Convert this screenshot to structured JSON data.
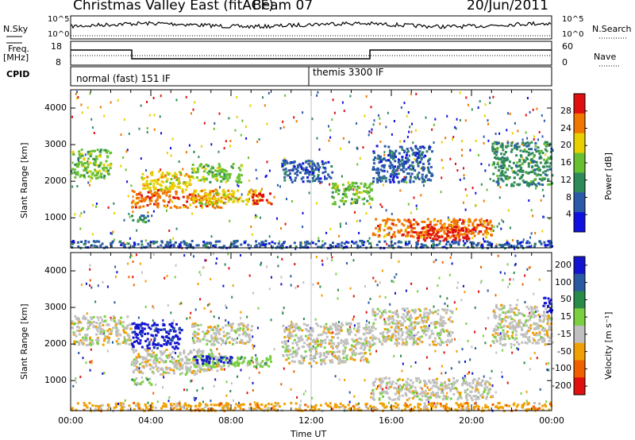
{
  "header": {
    "title": "Christmas Valley East (fitACF)",
    "beam": "Beam 07",
    "date": "20/Jun/2011"
  },
  "summary": {
    "nsky_label": "N.Sky",
    "nsky_ticks": [
      "10^5",
      "10^0"
    ],
    "nsearch_label": "N.Search",
    "nsearch_ticks": [
      "10^5",
      "10^0"
    ],
    "freq_label": [
      "Freq.",
      "[MHz]"
    ],
    "freq_ticks": [
      "18",
      "8"
    ],
    "nave_label": "Nave",
    "nave_ticks": [
      "60",
      "0"
    ],
    "cpid_label": "CPID",
    "cpid_modes": [
      {
        "label": "normal (fast) 151 IF",
        "start_h": 0,
        "end_h": 12
      },
      {
        "label": "themis 3300 IF",
        "start_h": 12,
        "end_h": 24
      }
    ]
  },
  "chart_data": [
    {
      "type": "heatmap",
      "title": "",
      "ylabel": "Slant Range [km]",
      "xlabel": "",
      "xlim": [
        0,
        24
      ],
      "ylim": [
        180,
        4500
      ],
      "yticks": [
        "1000",
        "2000",
        "3000",
        "4000"
      ],
      "colorbar": {
        "label": "Power [dB]",
        "ticks": [
          "4",
          "8",
          "12",
          "16",
          "20",
          "24",
          "28"
        ],
        "colors": [
          "#1010e0",
          "#2a5aa8",
          "#2f8a5a",
          "#68c030",
          "#e8d000",
          "#f07800",
          "#e01010"
        ]
      },
      "regions": [
        {
          "t0": 0.0,
          "t1": 2.0,
          "r0": 2100,
          "r1": 2900,
          "level": 3
        },
        {
          "t0": 3.0,
          "t1": 7.5,
          "r0": 1300,
          "r1": 1800,
          "level": 5
        },
        {
          "t0": 3.5,
          "t1": 6.0,
          "r0": 1800,
          "r1": 2300,
          "level": 4
        },
        {
          "t0": 6.0,
          "t1": 9.5,
          "r0": 1400,
          "r1": 1800,
          "level": 4
        },
        {
          "t0": 9.0,
          "t1": 10.0,
          "r0": 1400,
          "r1": 1700,
          "level": 6
        },
        {
          "t0": 6.0,
          "t1": 8.5,
          "r0": 2000,
          "r1": 2500,
          "level": 3
        },
        {
          "t0": 10.5,
          "t1": 13.0,
          "r0": 2000,
          "r1": 2600,
          "level": 1
        },
        {
          "t0": 13.0,
          "t1": 15.0,
          "r0": 1400,
          "r1": 2000,
          "level": 3
        },
        {
          "t0": 15.0,
          "t1": 21.0,
          "r0": 500,
          "r1": 1000,
          "level": 5
        },
        {
          "t0": 17.0,
          "t1": 20.0,
          "r0": 400,
          "r1": 800,
          "level": 6
        },
        {
          "t0": 15.0,
          "t1": 18.0,
          "r0": 2000,
          "r1": 3000,
          "level": 1
        },
        {
          "t0": 21.0,
          "t1": 24.0,
          "r0": 1900,
          "r1": 3100,
          "level": 2
        },
        {
          "t0": 3.0,
          "t1": 4.0,
          "r0": 900,
          "r1": 1100,
          "level": 2
        },
        {
          "t0": 0.0,
          "t1": 24.0,
          "r0": 200,
          "r1": 400,
          "level": 1
        }
      ]
    },
    {
      "type": "heatmap",
      "title": "",
      "ylabel": "Slant Range [km]",
      "xlabel": "Time UT",
      "xlim": [
        0,
        24
      ],
      "ylim": [
        180,
        4500
      ],
      "yticks": [
        "1000",
        "2000",
        "3000",
        "4000"
      ],
      "xticks": [
        "00:00",
        "04:00",
        "08:00",
        "12:00",
        "16:00",
        "20:00",
        "00:00"
      ],
      "colorbar": {
        "label": "Velocity [m s⁻¹]",
        "ticks": [
          "200",
          "100",
          "50",
          "15",
          "-15",
          "-50",
          "-100",
          "-200"
        ],
        "colors": [
          "#1414d0",
          "#2a5aa0",
          "#2a8a4a",
          "#7ad040",
          "#c0c0c0",
          "#f0a000",
          "#f06000",
          "#e01010"
        ]
      },
      "regions": [
        {
          "t0": 0.0,
          "t1": 3.0,
          "r0": 2000,
          "r1": 2800,
          "level": 4
        },
        {
          "t0": 3.0,
          "t1": 5.5,
          "r0": 1900,
          "r1": 2600,
          "level": 0
        },
        {
          "t0": 3.0,
          "t1": 7.5,
          "r0": 1200,
          "r1": 1900,
          "level": 4
        },
        {
          "t0": 6.0,
          "t1": 10.0,
          "r0": 1400,
          "r1": 1700,
          "level": 3
        },
        {
          "t0": 6.0,
          "t1": 8.0,
          "r0": 1500,
          "r1": 1700,
          "level": 0
        },
        {
          "t0": 6.0,
          "t1": 9.0,
          "r0": 2000,
          "r1": 2600,
          "level": 4
        },
        {
          "t0": 10.5,
          "t1": 15.0,
          "r0": 1500,
          "r1": 2600,
          "level": 4
        },
        {
          "t0": 15.0,
          "t1": 21.0,
          "r0": 500,
          "r1": 1100,
          "level": 4
        },
        {
          "t0": 15.0,
          "t1": 19.0,
          "r0": 2000,
          "r1": 3000,
          "level": 4
        },
        {
          "t0": 21.0,
          "t1": 24.0,
          "r0": 2000,
          "r1": 3100,
          "level": 4
        },
        {
          "t0": 23.5,
          "t1": 24.0,
          "r0": 2900,
          "r1": 3300,
          "level": 0
        },
        {
          "t0": 3.0,
          "t1": 4.0,
          "r0": 900,
          "r1": 1100,
          "level": 3
        },
        {
          "t0": 0.0,
          "t1": 24.0,
          "r0": 200,
          "r1": 420,
          "level": 5
        }
      ]
    }
  ]
}
